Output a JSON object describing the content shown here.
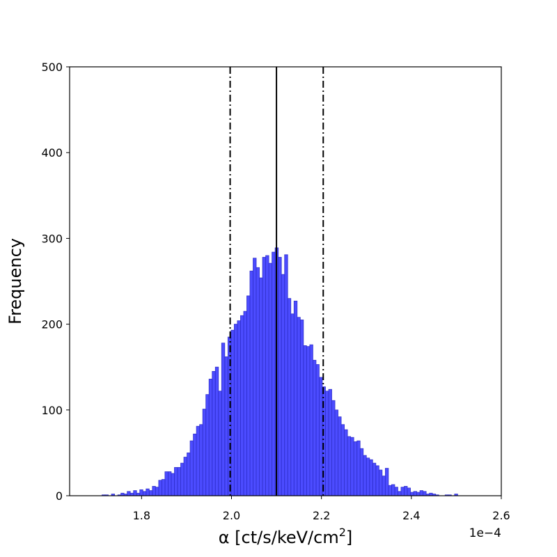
{
  "chart_data": {
    "type": "bar",
    "xlabel": "α [ct/s/keV/cm",
    "xlabel_superscript": "2",
    "xlabel_suffix": "]",
    "ylabel": "Frequency",
    "x_offset_label": "1e−4",
    "xlim": [
      1.64,
      2.6
    ],
    "ylim": [
      0,
      500
    ],
    "x_ticks": [
      1.8,
      2.0,
      2.2,
      2.4,
      2.6
    ],
    "y_ticks": [
      0,
      100,
      200,
      300,
      400,
      500
    ],
    "x_tick_labels": [
      "1.8",
      "2.0",
      "2.2",
      "2.4",
      "2.6"
    ],
    "y_tick_labels": [
      "0",
      "100",
      "200",
      "300",
      "400",
      "500"
    ],
    "bar_color": "#0000ff",
    "bar_edge_color": "#3333cc",
    "bin_start": 1.712,
    "bin_width": 0.007,
    "values": [
      1,
      1,
      0,
      2,
      0,
      1,
      3,
      2,
      5,
      3,
      6,
      3,
      7,
      5,
      8,
      6,
      11,
      10,
      18,
      19,
      28,
      28,
      26,
      33,
      33,
      38,
      45,
      50,
      64,
      72,
      81,
      83,
      101,
      118,
      136,
      145,
      150,
      122,
      178,
      162,
      185,
      193,
      200,
      204,
      210,
      215,
      233,
      262,
      277,
      266,
      254,
      278,
      280,
      271,
      284,
      289,
      278,
      258,
      281,
      230,
      212,
      227,
      208,
      205,
      175,
      174,
      176,
      158,
      153,
      138,
      127,
      122,
      124,
      111,
      100,
      92,
      83,
      77,
      69,
      68,
      63,
      64,
      55,
      47,
      44,
      42,
      38,
      35,
      30,
      23,
      32,
      12,
      13,
      10,
      5,
      10,
      11,
      9,
      4,
      5,
      4,
      6,
      5,
      2,
      3,
      2,
      1,
      0,
      0,
      1,
      1,
      0,
      2
    ],
    "vertical_lines": [
      {
        "x": 2.1,
        "style": "solid"
      },
      {
        "x": 1.997,
        "style": "dashdot"
      },
      {
        "x": 2.204,
        "style": "dashdot"
      }
    ]
  }
}
